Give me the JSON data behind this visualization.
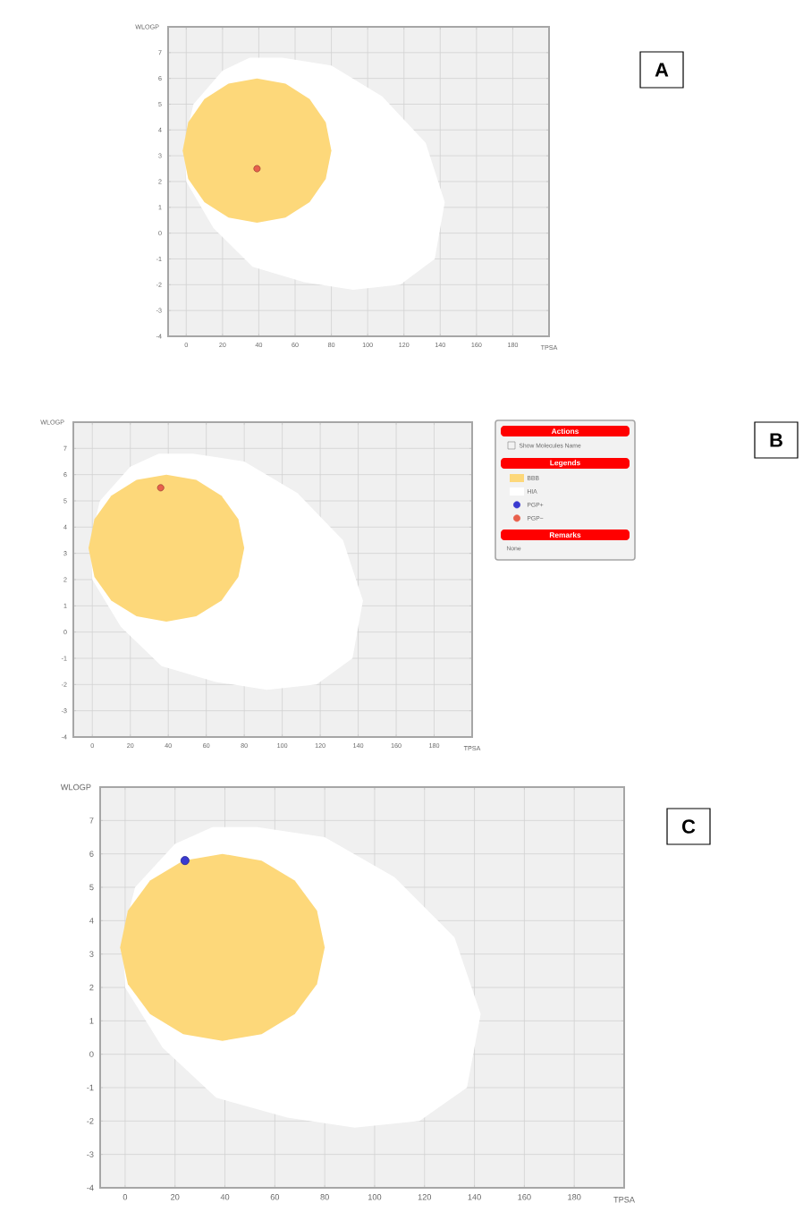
{
  "chart_data": [
    {
      "type": "scatter",
      "annotations": [
        "A"
      ],
      "xlabel": "TPSA",
      "ylabel": "WLOGP",
      "xlim": [
        -10,
        200
      ],
      "ylim": [
        -4,
        8
      ],
      "xticks": [
        0,
        20,
        40,
        60,
        80,
        100,
        120,
        140,
        160,
        180
      ],
      "yticks": [
        -4,
        -3,
        -2,
        -1,
        0,
        1,
        2,
        3,
        4,
        5,
        6,
        7
      ],
      "grid": true,
      "series": [
        {
          "type": "area",
          "color": "#fdd87a",
          "x": [
            80,
            76.9,
            68,
            54.7,
            39,
            23.3,
            10,
            1.1,
            -2,
            1.1,
            10,
            23.3,
            39,
            54.7,
            68,
            76.9
          ],
          "values": [
            3.2,
            4.3,
            5.2,
            5.8,
            6.0,
            5.8,
            5.2,
            4.3,
            3.2,
            2.1,
            1.2,
            0.6,
            0.4,
            0.6,
            1.2,
            2.1
          ]
        },
        {
          "type": "area",
          "color": "#ffffff",
          "x": [
            53,
            80,
            108,
            132,
            142.5,
            137,
            118,
            92,
            65,
            36.5,
            15,
            0,
            -1,
            4,
            20,
            35
          ],
          "values": [
            6.8,
            6.5,
            5.3,
            3.5,
            1.2,
            -1.0,
            -2.0,
            -2.2,
            -1.9,
            -1.3,
            0.2,
            2.0,
            3.5,
            5.0,
            6.3,
            6.8
          ]
        },
        {
          "color": "#e8604c",
          "marker": "circle",
          "x": [
            39
          ],
          "values": [
            2.5
          ]
        }
      ]
    },
    {
      "type": "scatter",
      "annotations": [
        "B",
        "Actions",
        "Show Molecules Name",
        "Remarks",
        "None"
      ],
      "xlabel": "TPSA",
      "ylabel": "WLOGP",
      "xlim": [
        -10,
        200
      ],
      "ylim": [
        -4,
        8
      ],
      "xticks": [
        0,
        20,
        40,
        60,
        80,
        100,
        120,
        140,
        160,
        180
      ],
      "yticks": [
        -4,
        -3,
        -2,
        -1,
        0,
        1,
        2,
        3,
        4,
        5,
        6,
        7
      ],
      "grid": true,
      "legend": "right",
      "legend_title": "Legends",
      "series": [
        {
          "type": "area",
          "name": "BBB",
          "color": "#fdd87a",
          "x": [
            80,
            76.9,
            68,
            54.7,
            39,
            23.3,
            10,
            1.1,
            -2,
            1.1,
            10,
            23.3,
            39,
            54.7,
            68,
            76.9
          ],
          "values": [
            3.2,
            4.3,
            5.2,
            5.8,
            6.0,
            5.8,
            5.2,
            4.3,
            3.2,
            2.1,
            1.2,
            0.6,
            0.4,
            0.6,
            1.2,
            2.1
          ]
        },
        {
          "type": "area",
          "name": "HIA",
          "color": "#ffffff",
          "x": [
            53,
            80,
            108,
            132,
            142.5,
            137,
            118,
            92,
            65,
            36.5,
            15,
            0,
            -1,
            4,
            20,
            35
          ],
          "values": [
            6.8,
            6.5,
            5.3,
            3.5,
            1.2,
            -1.0,
            -2.0,
            -2.2,
            -1.9,
            -1.3,
            0.2,
            2.0,
            3.5,
            5.0,
            6.3,
            6.8
          ]
        },
        {
          "name": "PGP+",
          "color": "#3a3ad0",
          "marker": "circle"
        },
        {
          "name": "PGP−",
          "color": "#e8604c",
          "marker": "circle",
          "x": [
            36
          ],
          "values": [
            5.5
          ]
        }
      ]
    },
    {
      "type": "scatter",
      "annotations": [
        "C"
      ],
      "xlabel": "TPSA",
      "ylabel": "WLOGP",
      "xlim": [
        -10,
        200
      ],
      "ylim": [
        -4,
        8
      ],
      "xticks": [
        0,
        20,
        40,
        60,
        80,
        100,
        120,
        140,
        160,
        180
      ],
      "yticks": [
        -4,
        -3,
        -2,
        -1,
        0,
        1,
        2,
        3,
        4,
        5,
        6,
        7
      ],
      "grid": true,
      "series": [
        {
          "type": "area",
          "color": "#fdd87a",
          "x": [
            80,
            76.9,
            68,
            54.7,
            39,
            23.3,
            10,
            1.1,
            -2,
            1.1,
            10,
            23.3,
            39,
            54.7,
            68,
            76.9
          ],
          "values": [
            3.2,
            4.3,
            5.2,
            5.8,
            6.0,
            5.8,
            5.2,
            4.3,
            3.2,
            2.1,
            1.2,
            0.6,
            0.4,
            0.6,
            1.2,
            2.1
          ]
        },
        {
          "type": "area",
          "color": "#ffffff",
          "x": [
            53,
            80,
            108,
            132,
            142.5,
            137,
            118,
            92,
            65,
            36.5,
            15,
            0,
            -1,
            4,
            20,
            35
          ],
          "values": [
            6.8,
            6.5,
            5.3,
            3.5,
            1.2,
            -1.0,
            -2.0,
            -2.2,
            -1.9,
            -1.3,
            0.2,
            2.0,
            3.5,
            5.0,
            6.3,
            6.8
          ]
        },
        {
          "color": "#3a3ad0",
          "marker": "circle",
          "x": [
            24
          ],
          "values": [
            5.8
          ]
        }
      ]
    }
  ]
}
